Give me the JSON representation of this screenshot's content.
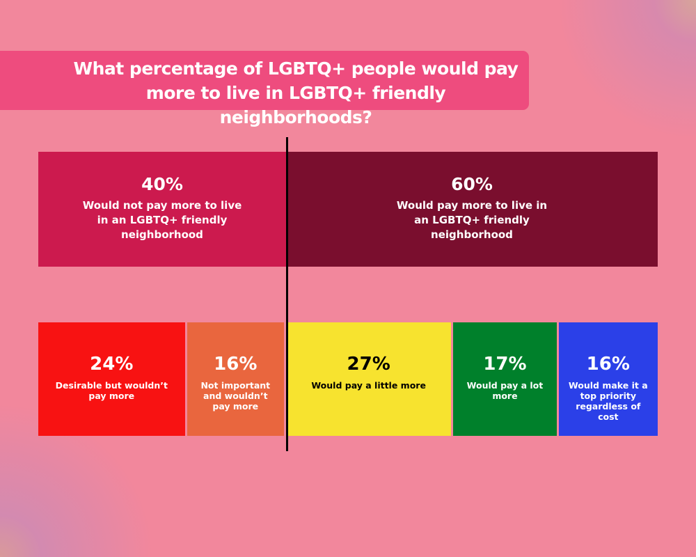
{
  "chart_data": {
    "type": "bar",
    "title": "What percentage of LGBTQ+ people would pay more to live in LGBTQ+ friendly neighborhoods?",
    "orientation": "horizontal-stacked",
    "rows": [
      {
        "segments": [
          {
            "value": 40,
            "label": "40%",
            "text": "Would not pay more to live in an LGBTQ+ friendly neighborhood",
            "color": "#cc1a4e",
            "text_color": "#ffffff"
          },
          {
            "value": 60,
            "label": "60%",
            "text": "Would pay more to live in an LGBTQ+ friendly neighborhood",
            "color": "#7a0e2e",
            "text_color": "#ffffff"
          }
        ]
      },
      {
        "segments": [
          {
            "value": 24,
            "label": "24%",
            "text": "Desirable but wouldn’t pay more",
            "color": "#f81212",
            "text_color": "#ffffff"
          },
          {
            "value": 16,
            "label": "16%",
            "text": "Not important and wouldn’t pay more",
            "color": "#e9663e",
            "text_color": "#ffffff"
          },
          {
            "value": 27,
            "label": "27%",
            "text": "Would pay a little more",
            "color": "#f7e32f",
            "text_color": "#000000"
          },
          {
            "value": 17,
            "label": "17%",
            "text": "Would pay a lot more",
            "color": "#00802b",
            "text_color": "#ffffff"
          },
          {
            "value": 16,
            "label": "16%",
            "text": "Would make it a top priority regardless of cost",
            "color": "#2b40e8",
            "text_color": "#ffffff"
          }
        ]
      }
    ]
  }
}
